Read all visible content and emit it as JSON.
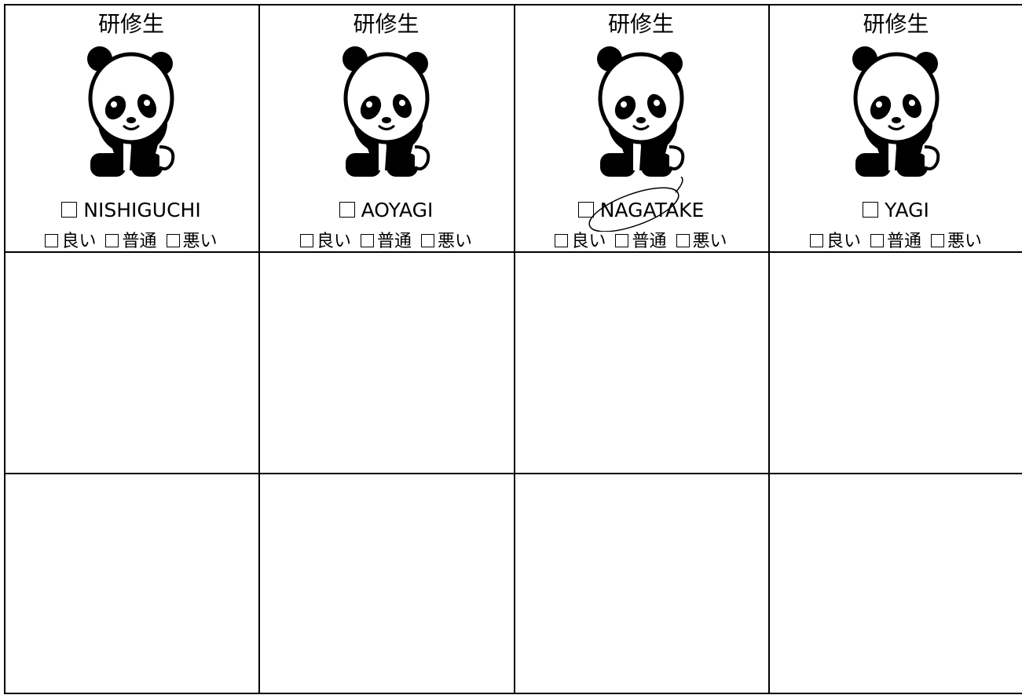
{
  "cards": [
    {
      "title": "研修生",
      "name": "NISHIGUCHI",
      "options": [
        "良い",
        "普通",
        "悪い"
      ]
    },
    {
      "title": "研修生",
      "name": "AOYAGI",
      "options": [
        "良い",
        "普通",
        "悪い"
      ]
    },
    {
      "title": "研修生",
      "name": "NAGATAKE",
      "options": [
        "良い",
        "普通",
        "悪い"
      ]
    },
    {
      "title": "研修生",
      "name": "YAGI",
      "options": [
        "良い",
        "普通",
        "悪い"
      ]
    }
  ]
}
